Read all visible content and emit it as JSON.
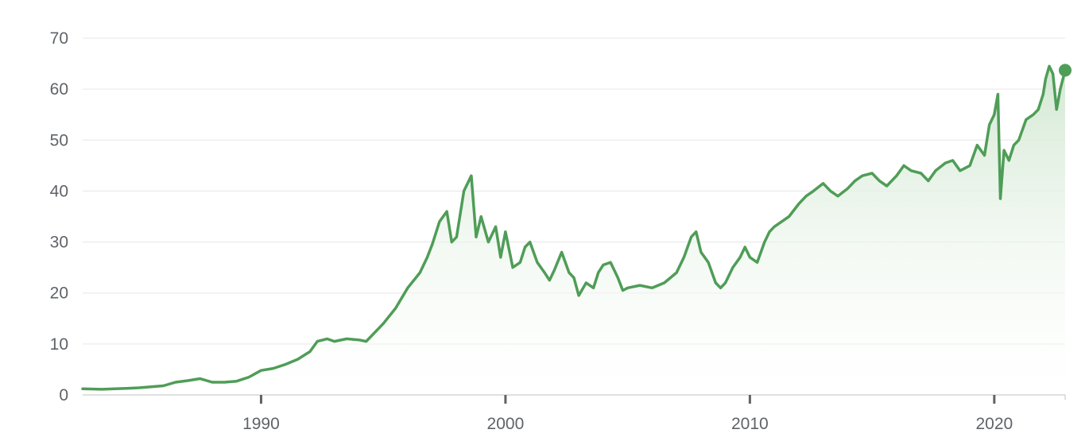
{
  "chart_data": {
    "type": "area",
    "title": "",
    "xlabel": "",
    "ylabel": "",
    "xlim": [
      1982.7,
      2022.9
    ],
    "ylim": [
      0,
      70
    ],
    "y_ticks": [
      0,
      10,
      20,
      30,
      40,
      50,
      60,
      70
    ],
    "x_ticks": [
      1990,
      2000,
      2010,
      2020
    ],
    "x_tick_labels": [
      "1990",
      "2000",
      "2010",
      "2020"
    ],
    "y_tick_labels": [
      "0",
      "10",
      "20",
      "30",
      "40",
      "50",
      "60",
      "70"
    ],
    "grid": true,
    "legend": "none",
    "colors": {
      "line": "#4f9d57",
      "fill_top": "#d3e8d3",
      "fill_bottom": "#ffffff",
      "grid": "#ececec",
      "text": "#5f6368"
    },
    "series": [
      {
        "x": [
          1982.7,
          1983.5,
          1984.0,
          1984.5,
          1985.0,
          1985.5,
          1986.0,
          1986.5,
          1987.0,
          1987.5,
          1988.0,
          1988.5,
          1989.0,
          1989.5,
          1990.0,
          1990.5,
          1991.0,
          1991.5,
          1992.0,
          1992.3,
          1992.7,
          1993.0,
          1993.5,
          1994.0,
          1994.3,
          1994.7,
          1995.0,
          1995.5,
          1996.0,
          1996.5,
          1996.8,
          1997.0,
          1997.3,
          1997.6,
          1997.8,
          1998.0,
          1998.3,
          1998.6,
          1998.8,
          1999.0,
          1999.3,
          1999.6,
          1999.8,
          2000.0,
          2000.3,
          2000.6,
          2000.8,
          2001.0,
          2001.3,
          2001.6,
          2001.8,
          2002.0,
          2002.3,
          2002.6,
          2002.8,
          2003.0,
          2003.3,
          2003.6,
          2003.8,
          2004.0,
          2004.3,
          2004.6,
          2004.8,
          2005.0,
          2005.5,
          2006.0,
          2006.5,
          2007.0,
          2007.3,
          2007.6,
          2007.8,
          2008.0,
          2008.3,
          2008.6,
          2008.8,
          2009.0,
          2009.3,
          2009.6,
          2009.8,
          2010.0,
          2010.3,
          2010.6,
          2010.8,
          2011.0,
          2011.3,
          2011.6,
          2012.0,
          2012.3,
          2012.6,
          2013.0,
          2013.3,
          2013.6,
          2014.0,
          2014.3,
          2014.6,
          2015.0,
          2015.3,
          2015.6,
          2016.0,
          2016.3,
          2016.6,
          2017.0,
          2017.3,
          2017.6,
          2018.0,
          2018.3,
          2018.6,
          2019.0,
          2019.3,
          2019.6,
          2019.8,
          2020.0,
          2020.15,
          2020.25,
          2020.4,
          2020.6,
          2020.8,
          2021.0,
          2021.3,
          2021.6,
          2021.8,
          2022.0,
          2022.1,
          2022.25,
          2022.4,
          2022.55,
          2022.7,
          2022.9
        ],
        "y": [
          1.2,
          1.1,
          1.2,
          1.3,
          1.4,
          1.6,
          1.8,
          2.5,
          2.8,
          3.2,
          2.5,
          2.5,
          2.7,
          3.5,
          4.8,
          5.2,
          6.0,
          7.0,
          8.5,
          10.5,
          11.0,
          10.5,
          11.0,
          10.8,
          10.5,
          12.5,
          14.0,
          17.0,
          21.0,
          24.0,
          27.0,
          29.5,
          34.0,
          36.0,
          30.0,
          31.0,
          40.0,
          43.0,
          31.0,
          35.0,
          30.0,
          33.0,
          27.0,
          32.0,
          25.0,
          26.0,
          29.0,
          30.0,
          26.0,
          24.0,
          22.5,
          24.5,
          28.0,
          24.0,
          23.0,
          19.5,
          22.0,
          21.0,
          24.0,
          25.5,
          26.0,
          23.0,
          20.5,
          21.0,
          21.5,
          21.0,
          22.0,
          24.0,
          27.0,
          31.0,
          32.0,
          28.0,
          26.0,
          22.0,
          21.0,
          22.0,
          25.0,
          27.0,
          29.0,
          27.0,
          26.0,
          30.0,
          32.0,
          33.0,
          34.0,
          35.0,
          37.5,
          39.0,
          40.0,
          41.5,
          40.0,
          39.0,
          40.5,
          42.0,
          43.0,
          43.5,
          42.0,
          41.0,
          43.0,
          45.0,
          44.0,
          43.5,
          42.0,
          44.0,
          45.5,
          46.0,
          44.0,
          45.0,
          49.0,
          47.0,
          53.0,
          55.0,
          59.0,
          38.5,
          48.0,
          46.0,
          49.0,
          50.0,
          54.0,
          55.0,
          56.0,
          59.0,
          62.0,
          64.5,
          63.0,
          56.0,
          60.0,
          63.7
        ]
      }
    ],
    "last_point": {
      "x": 2022.9,
      "y": 63.7
    }
  }
}
